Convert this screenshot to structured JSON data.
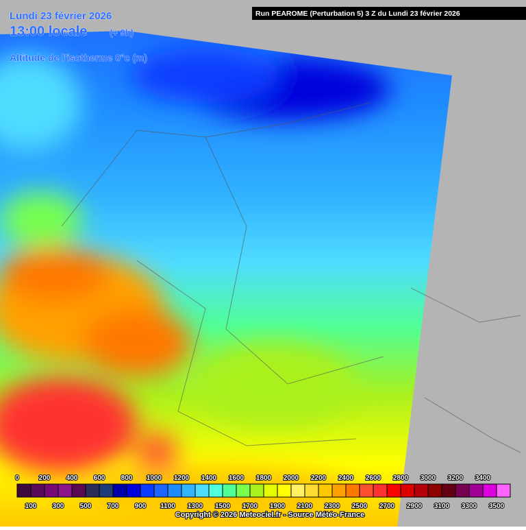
{
  "header": {
    "date": "Lundi 23 février 2026",
    "time": "13:00 locale",
    "offset": "(+ 9h)",
    "parameter": "Altitude de l'isotherme 0°c (m)",
    "run": "Run PEAROME (Perturbation 5) 3 Z du Lundi 23 février 2026"
  },
  "legend": {
    "values": [
      0,
      100,
      200,
      300,
      400,
      500,
      600,
      700,
      800,
      900,
      1000,
      1100,
      1200,
      1300,
      1400,
      1500,
      1600,
      1700,
      1800,
      1900,
      2000,
      2100,
      2200,
      2300,
      2400,
      2500,
      2600,
      2700,
      2800,
      2900,
      3000,
      3100,
      3200,
      3300,
      3400,
      3500
    ],
    "colors": [
      "#3c0a3c",
      "#5a0a5a",
      "#780a78",
      "#8c148c",
      "#5a0a50",
      "#2d2d5a",
      "#1e3c78",
      "#0000aa",
      "#0000dc",
      "#0a3cff",
      "#1e64ff",
      "#1e8cff",
      "#32b4ff",
      "#50dcff",
      "#50ffdc",
      "#50ff96",
      "#78ff50",
      "#aaf01e",
      "#e6ff00",
      "#ffff00",
      "#fff064",
      "#ffdc32",
      "#ffc800",
      "#ffa000",
      "#ff7800",
      "#ff5032",
      "#ff3232",
      "#ff0000",
      "#dc0000",
      "#b4000a",
      "#8c0000",
      "#640014",
      "#780050",
      "#a00096",
      "#dc00dc",
      "#ff64ff"
    ]
  },
  "footer": {
    "copyright": "Copyright © 2026 Meteociel.fr - Source Météo-France"
  }
}
